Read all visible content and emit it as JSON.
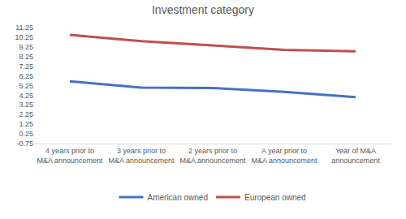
{
  "chart_data": {
    "type": "line",
    "title": "Investment category",
    "categories": [
      "4 years prior to M&A announcement",
      "3 years prior to M&A announcement",
      "2 years prior to M&A announcement",
      "A year prior to M&A announcement",
      "Year of M&A announcement"
    ],
    "series": [
      {
        "name": "American owned",
        "color": "#4472c4",
        "values": [
          5.7,
          5.05,
          5.0,
          4.6,
          4.05
        ]
      },
      {
        "name": "European owned",
        "color": "#c0504d",
        "values": [
          10.5,
          9.85,
          9.4,
          8.95,
          8.8
        ]
      }
    ],
    "ylim": [
      -0.75,
      11.25
    ],
    "yticks": [
      -0.75,
      0.25,
      1.25,
      2.25,
      3.25,
      4.25,
      5.25,
      6.25,
      7.25,
      8.25,
      9.25,
      10.25,
      11.25
    ],
    "grid": false,
    "legend": "bottom"
  }
}
